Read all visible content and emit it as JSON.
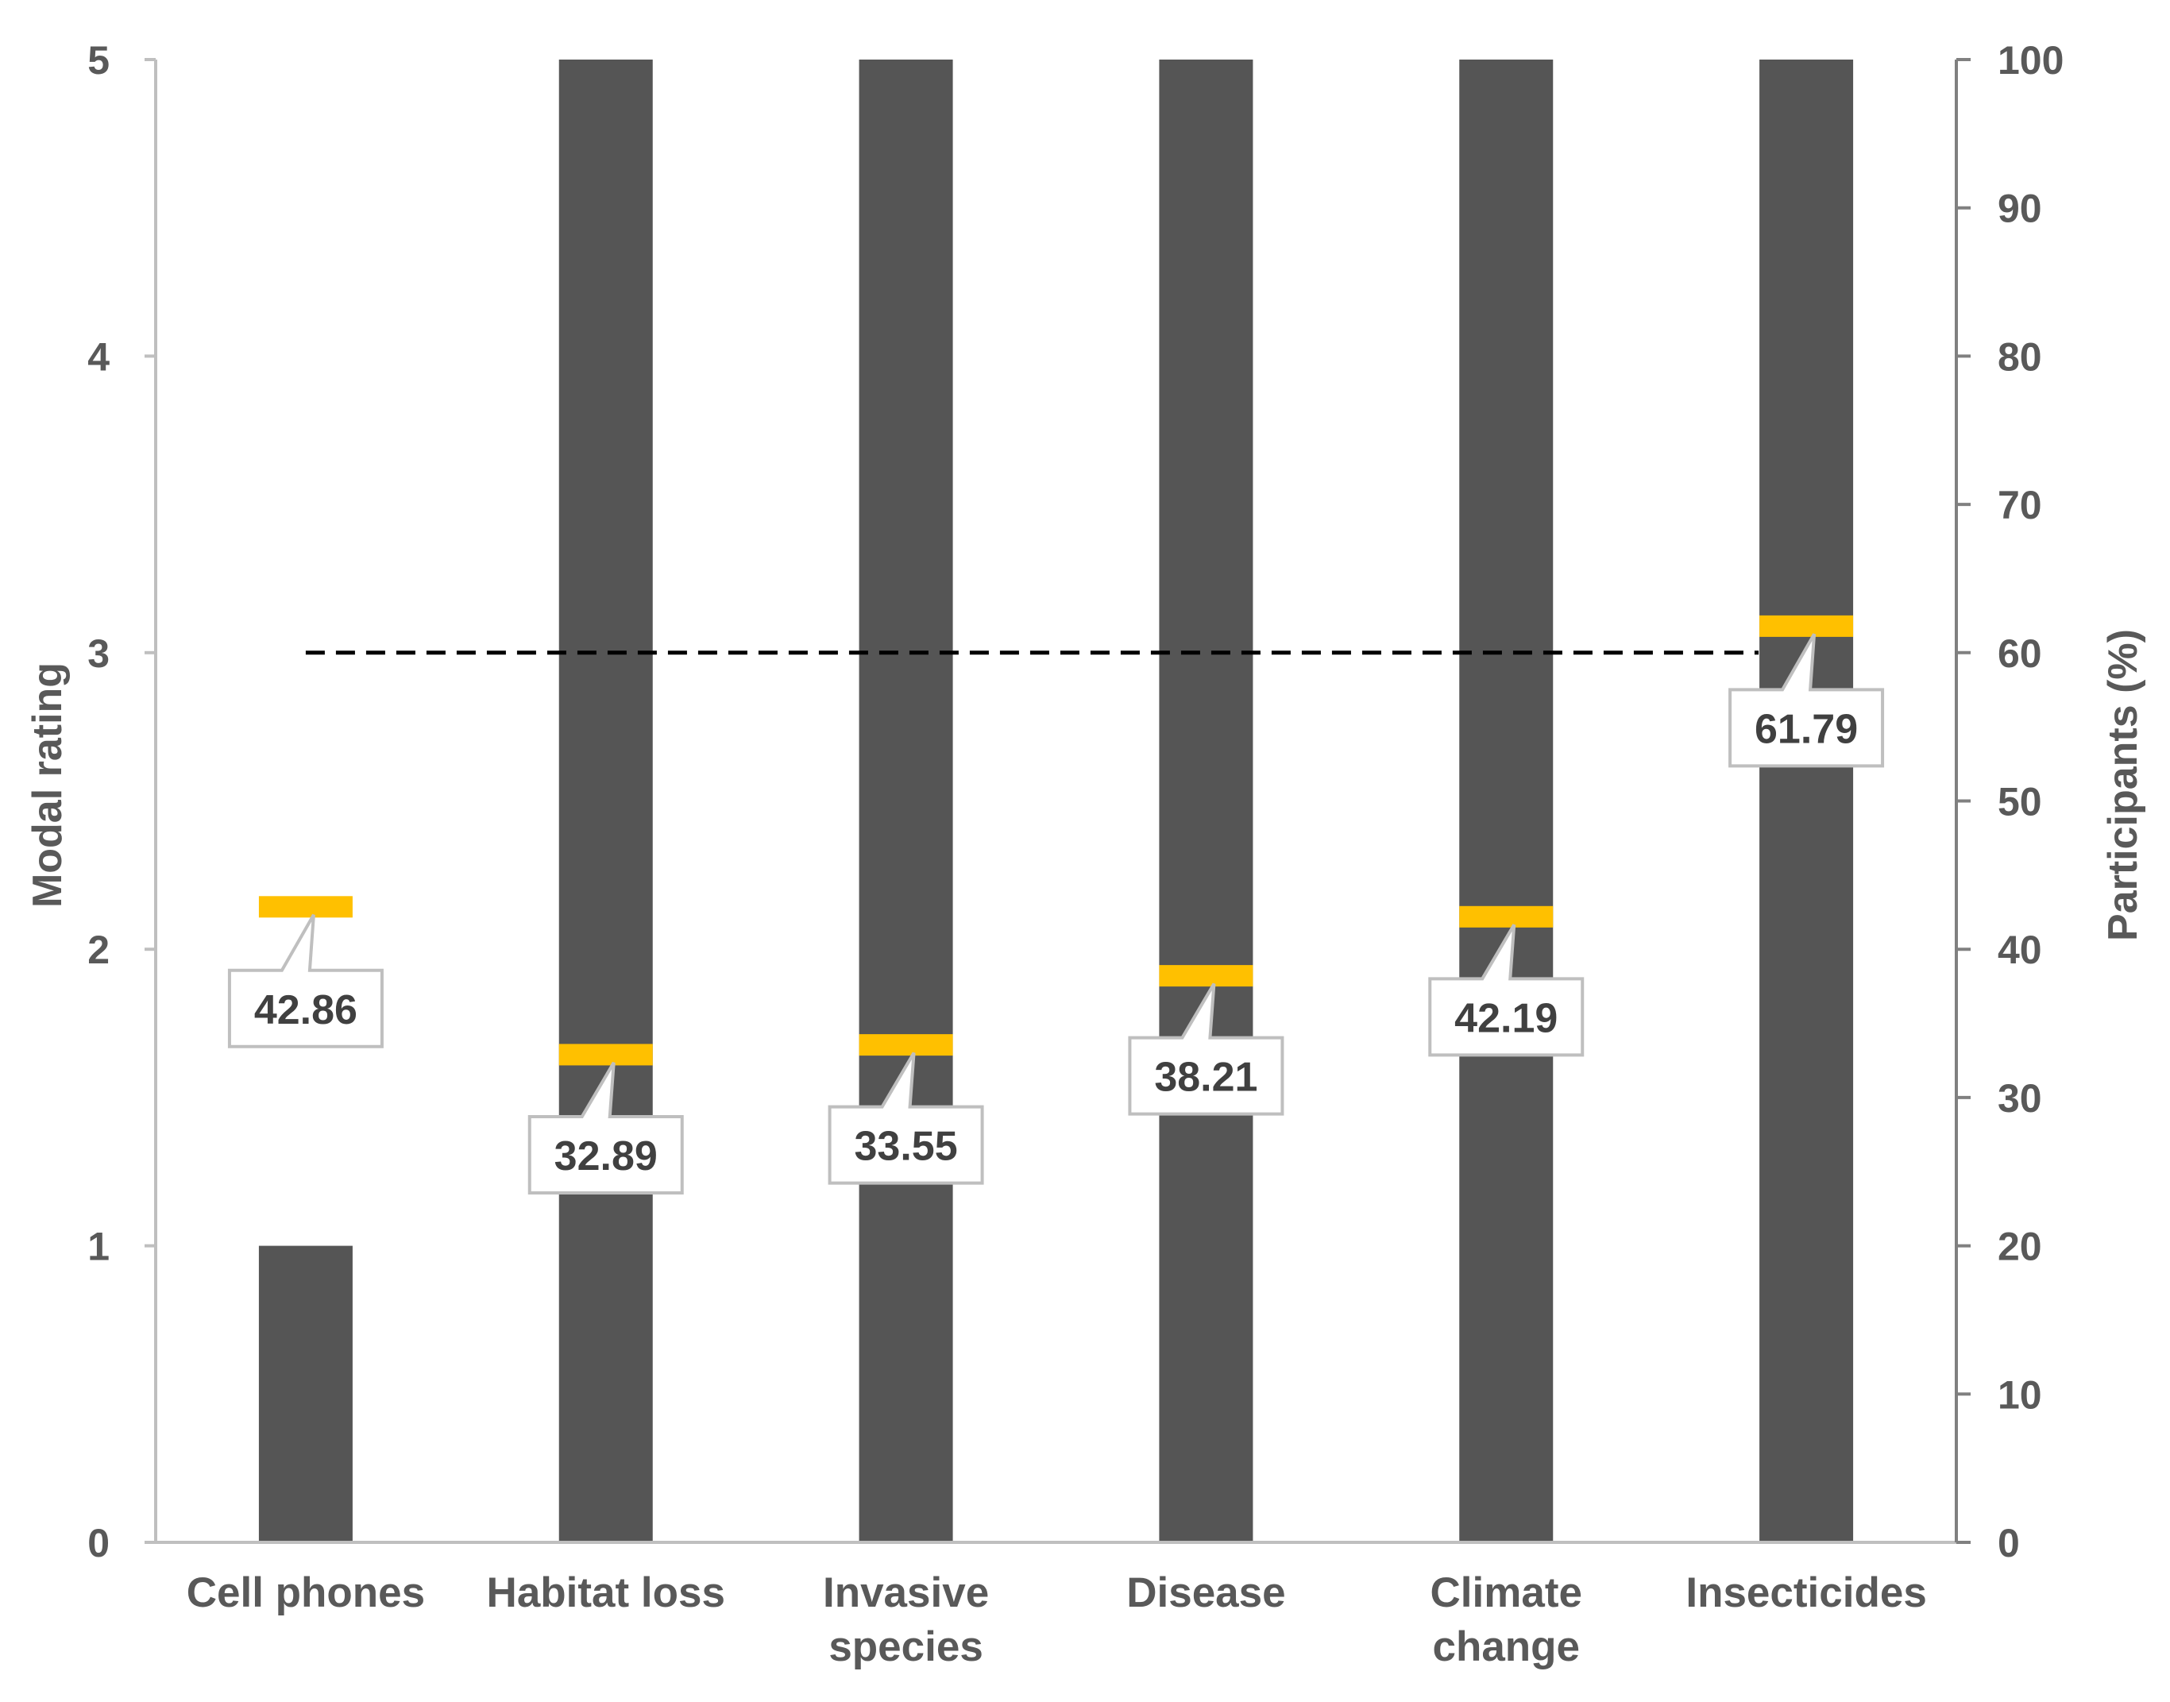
{
  "chart_data": {
    "type": "bar",
    "categories": [
      [
        "Cell phones"
      ],
      [
        "Habitat loss"
      ],
      [
        "Invasive",
        "species"
      ],
      [
        "Disease"
      ],
      [
        "Climate",
        "change"
      ],
      [
        "Insecticides"
      ]
    ],
    "series": [
      {
        "axis": "left",
        "kind": "bar",
        "values": [
          1,
          5,
          5,
          5,
          5,
          5
        ]
      },
      {
        "axis": "right",
        "kind": "marker",
        "values": [
          42.86,
          32.89,
          33.55,
          38.21,
          42.19,
          61.79
        ]
      }
    ],
    "data_labels": [
      "42.86",
      "32.89",
      "33.55",
      "38.21",
      "42.19",
      "61.79"
    ],
    "reference_line": {
      "axis": "right",
      "value": 60,
      "style": "dashed"
    },
    "ylabel": "Modal rating",
    "y2label": "Participants (%)",
    "ylim": [
      0,
      5
    ],
    "y2lim": [
      0,
      100
    ],
    "yticks": [
      "0",
      "1",
      "2",
      "3",
      "4",
      "5"
    ],
    "y2ticks": [
      "0",
      "10",
      "20",
      "30",
      "40",
      "50",
      "60",
      "70",
      "80",
      "90",
      "100"
    ],
    "grid": false,
    "legend": "none",
    "colors": {
      "bar": "#555555",
      "marker": "#FFC000",
      "axis": "#BFBFBF",
      "text": "#595959",
      "reference_line": "#000000"
    }
  }
}
